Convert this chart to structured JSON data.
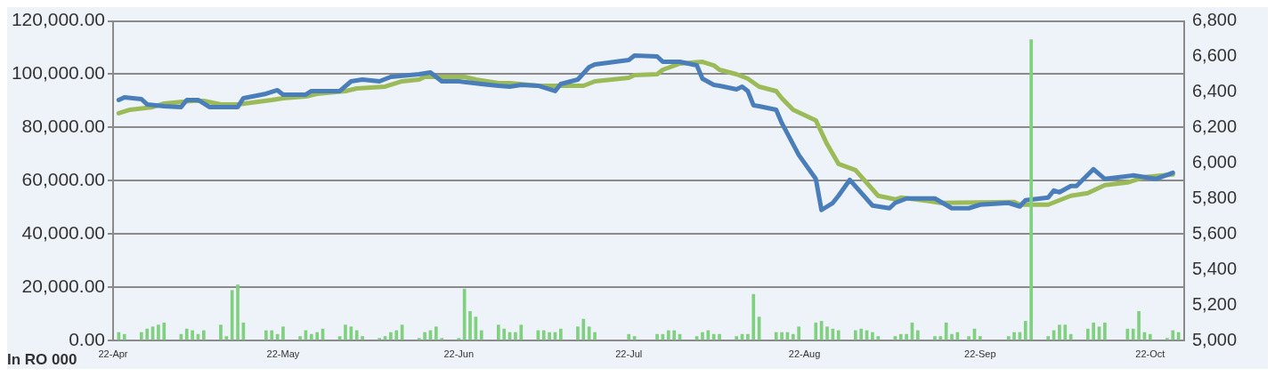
{
  "chart_data": {
    "type": "line",
    "ylabel": "In RO 000",
    "xlim": [
      "--04-22",
      "--10-28"
    ],
    "xticks": [
      {
        "value": "--04-22",
        "label": "22-Apr"
      },
      {
        "value": "--05-22",
        "label": "22-May"
      },
      {
        "value": "--06-22",
        "label": "22-Jun"
      },
      {
        "value": "--07-22",
        "label": "22-Jul"
      },
      {
        "value": "--08-22",
        "label": "22-Aug"
      },
      {
        "value": "--09-22",
        "label": "22-Sep"
      },
      {
        "value": "--10-22",
        "label": "22-Oct"
      }
    ],
    "ylim": [
      0,
      120000
    ],
    "yticks": [
      {
        "value": 0,
        "label": "0.00"
      },
      {
        "value": 20000,
        "label": "20,000.00"
      },
      {
        "value": 40000,
        "label": "40,000.00"
      },
      {
        "value": 60000,
        "label": "60,000.00"
      },
      {
        "value": 80000,
        "label": "80,000.00"
      },
      {
        "value": 100000,
        "label": "100,000.00"
      },
      {
        "value": 120000,
        "label": "120,000.00"
      }
    ],
    "y2lim": [
      5000,
      6800
    ],
    "y2ticks": [
      {
        "value": 5000,
        "label": "5,000"
      },
      {
        "value": 5200,
        "label": "5,200"
      },
      {
        "value": 5400,
        "label": "5,400"
      },
      {
        "value": 5600,
        "label": "5,600"
      },
      {
        "value": 5800,
        "label": "5,800"
      },
      {
        "value": 6000,
        "label": "6,000"
      },
      {
        "value": 6200,
        "label": "6,200"
      },
      {
        "value": 6400,
        "label": "6,400"
      },
      {
        "value": 6600,
        "label": "6,600"
      },
      {
        "value": 6800,
        "label": "6,800"
      }
    ],
    "grid": "y",
    "legend": false,
    "marker": "none",
    "line_style": "solid",
    "series": [
      {
        "type": "bar",
        "axis": "y",
        "color": "#7fd07f",
        "x": [
          "--04-23",
          "--04-24",
          "--04-27",
          "--04-28",
          "--04-29",
          "--04-30",
          "--05-01",
          "--05-04",
          "--05-05",
          "--05-06",
          "--05-07",
          "--05-08",
          "--05-11",
          "--05-12",
          "--05-13",
          "--05-14",
          "--05-15",
          "--05-19",
          "--05-20",
          "--05-21",
          "--05-22",
          "--05-25",
          "--05-26",
          "--05-27",
          "--05-28",
          "--05-29",
          "--06-01",
          "--06-02",
          "--06-03",
          "--06-04",
          "--06-05",
          "--06-08",
          "--06-09",
          "--06-10",
          "--06-11",
          "--06-12",
          "--06-15",
          "--06-16",
          "--06-17",
          "--06-18",
          "--06-19",
          "--06-22",
          "--06-23",
          "--06-24",
          "--06-25",
          "--06-26",
          "--06-29",
          "--06-30",
          "--07-01",
          "--07-02",
          "--07-03",
          "--07-06",
          "--07-07",
          "--07-08",
          "--07-09",
          "--07-10",
          "--07-13",
          "--07-14",
          "--07-15",
          "--07-16",
          "--07-22",
          "--07-23",
          "--07-27",
          "--07-28",
          "--07-29",
          "--07-30",
          "--07-31",
          "--08-03",
          "--08-04",
          "--08-05",
          "--08-06",
          "--08-07",
          "--08-10",
          "--08-11",
          "--08-12",
          "--08-13",
          "--08-14",
          "--08-17",
          "--08-18",
          "--08-19",
          "--08-20",
          "--08-21",
          "--08-24",
          "--08-25",
          "--08-26",
          "--08-27",
          "--08-28",
          "--08-31",
          "--09-01",
          "--09-02",
          "--09-03",
          "--09-04",
          "--09-07",
          "--09-08",
          "--09-09",
          "--09-10",
          "--09-11",
          "--09-14",
          "--09-15",
          "--09-16",
          "--09-17",
          "--09-18",
          "--09-20",
          "--09-21",
          "--09-22",
          "--09-27",
          "--09-28",
          "--09-29",
          "--09-30",
          "--10-01",
          "--10-04",
          "--10-05",
          "--10-06",
          "--10-07",
          "--10-08",
          "--10-11",
          "--10-12",
          "--10-13",
          "--10-14",
          "--10-18",
          "--10-19",
          "--10-20",
          "--10-21",
          "--10-22",
          "--10-25",
          "--10-26",
          "--10-27"
        ],
        "values": [
          3000,
          2300,
          3000,
          4300,
          5100,
          5800,
          6600,
          2300,
          4300,
          3700,
          2300,
          3700,
          5800,
          1500,
          18800,
          20900,
          6600,
          3700,
          3700,
          2300,
          5100,
          1500,
          3700,
          2300,
          3000,
          4300,
          1500,
          5800,
          5100,
          3700,
          1500,
          800,
          1500,
          3000,
          3700,
          5800,
          800,
          3000,
          3700,
          5100,
          800,
          800,
          19300,
          10900,
          8800,
          3700,
          5800,
          4300,
          3000,
          3000,
          5800,
          3700,
          3700,
          3000,
          3000,
          4300,
          5100,
          8000,
          5100,
          3000,
          2300,
          1500,
          2300,
          2300,
          3700,
          3700,
          2300,
          1500,
          3000,
          3700,
          2300,
          2300,
          1500,
          2300,
          2300,
          17300,
          8800,
          3000,
          3000,
          3000,
          2300,
          5100,
          6600,
          7200,
          5100,
          4300,
          3700,
          3700,
          4300,
          3700,
          3000,
          1500,
          1500,
          2300,
          2300,
          6600,
          3700,
          1500,
          1500,
          6600,
          2300,
          3000,
          1500,
          4300,
          1500,
          1500,
          3000,
          3000,
          7200,
          113000,
          1500,
          3700,
          5800,
          5800,
          2300,
          4300,
          6600,
          5100,
          6600,
          4300,
          4300,
          10900,
          3000,
          2300,
          800,
          3700,
          3000
        ]
      },
      {
        "axis": "y2",
        "color": "#4a7ebb",
        "x": [
          "--04-23",
          "--04-24",
          "--04-27",
          "--04-28",
          "--05-01",
          "--05-04",
          "--05-05",
          "--05-07",
          "--05-09",
          "--05-14",
          "--05-15",
          "--05-19",
          "--05-21",
          "--05-22",
          "--05-26",
          "--05-27",
          "--06-01",
          "--06-03",
          "--06-05",
          "--06-08",
          "--06-10",
          "--06-15",
          "--06-17",
          "--06-19",
          "--06-22",
          "--06-26",
          "--06-29",
          "--07-01",
          "--07-03",
          "--07-06",
          "--07-09",
          "--07-10",
          "--07-13",
          "--07-15",
          "--07-16",
          "--07-22",
          "--07-23",
          "--07-27",
          "--07-28",
          "--07-31",
          "--08-03",
          "--08-04",
          "--08-06",
          "--08-07",
          "--08-10",
          "--08-11",
          "--08-12",
          "--08-13",
          "--08-14",
          "--08-17",
          "--08-18",
          "--08-19",
          "--08-21",
          "--08-24",
          "--08-25",
          "--08-27",
          "--08-28",
          "--08-30",
          "--09-03",
          "--09-06",
          "--09-07",
          "--09-09",
          "--09-14",
          "--09-17",
          "--09-20",
          "--09-22",
          "--09-27",
          "--09-29",
          "--09-30",
          "--10-04",
          "--10-05",
          "--10-06",
          "--10-08",
          "--10-09",
          "--10-12",
          "--10-14",
          "--10-19",
          "--10-21",
          "--10-23",
          "--10-26"
        ],
        "values": [
          6355,
          6370,
          6360,
          6330,
          6320,
          6315,
          6355,
          6355,
          6315,
          6315,
          6365,
          6390,
          6410,
          6385,
          6385,
          6405,
          6405,
          6460,
          6470,
          6460,
          6485,
          6500,
          6510,
          6460,
          6460,
          6445,
          6435,
          6430,
          6440,
          6435,
          6405,
          6445,
          6470,
          6540,
          6555,
          6580,
          6605,
          6600,
          6570,
          6570,
          6550,
          6475,
          6440,
          6435,
          6415,
          6430,
          6405,
          6325,
          6320,
          6300,
          6225,
          6165,
          6045,
          5910,
          5735,
          5775,
          5815,
          5905,
          5760,
          5745,
          5775,
          5800,
          5800,
          5745,
          5745,
          5765,
          5775,
          5755,
          5790,
          5805,
          5845,
          5835,
          5870,
          5870,
          5965,
          5910,
          5930,
          5920,
          5910,
          5945
        ]
      },
      {
        "axis": "y2",
        "color": "#9bbb59",
        "x": [
          "--04-23",
          "--04-25",
          "--04-29",
          "--05-01",
          "--05-06",
          "--05-08",
          "--05-11",
          "--05-14",
          "--05-20",
          "--05-22",
          "--05-26",
          "--05-28",
          "--06-02",
          "--06-04",
          "--06-09",
          "--06-12",
          "--06-15",
          "--06-16",
          "--06-23",
          "--06-25",
          "--06-29",
          "--07-01",
          "--07-06",
          "--07-14",
          "--07-16",
          "--07-22",
          "--07-23",
          "--07-27",
          "--07-28",
          "--07-31",
          "--08-04",
          "--08-06",
          "--08-07",
          "--08-10",
          "--08-12",
          "--08-14",
          "--08-17",
          "--08-18",
          "--08-20",
          "--08-24",
          "--08-26",
          "--08-28",
          "--08-31",
          "--09-04",
          "--09-07",
          "--09-08",
          "--09-13",
          "--09-15",
          "--09-28",
          "--09-29",
          "--10-04",
          "--10-08",
          "--10-11",
          "--10-14",
          "--10-18",
          "--10-21",
          "--10-26"
        ],
        "values": [
          6280,
          6300,
          6315,
          6335,
          6350,
          6350,
          6330,
          6330,
          6355,
          6365,
          6375,
          6390,
          6405,
          6420,
          6430,
          6460,
          6470,
          6485,
          6485,
          6470,
          6450,
          6450,
          6435,
          6435,
          6460,
          6480,
          6495,
          6500,
          6525,
          6560,
          6570,
          6550,
          6525,
          6500,
          6475,
          6430,
          6405,
          6365,
          6300,
          6240,
          6105,
          5995,
          5960,
          5815,
          5795,
          5805,
          5785,
          5775,
          5780,
          5765,
          5765,
          5815,
          5830,
          5875,
          5890,
          5920,
          5935
        ]
      }
    ]
  }
}
